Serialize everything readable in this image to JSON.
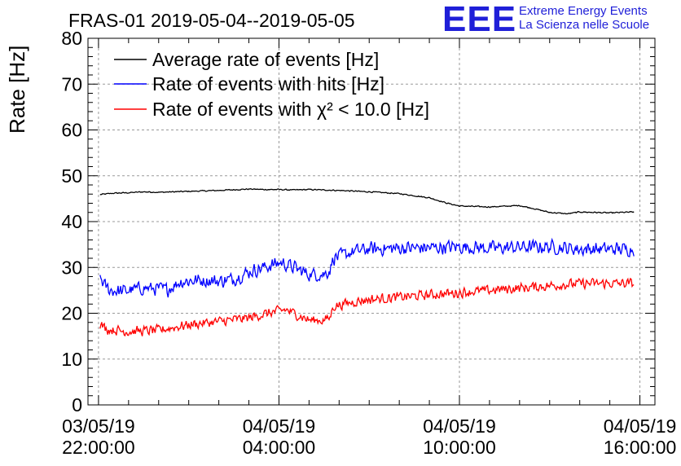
{
  "logo": {
    "letters": "EEE",
    "line1": "Extreme Energy Events",
    "line2": "La Scienza nelle Scuole"
  },
  "chart_data": {
    "type": "line",
    "title": "FRAS-01 2019-05-04--2019-05-05",
    "xlabel": "",
    "ylabel": "Rate [Hz]",
    "ylim": [
      0,
      80
    ],
    "yticks": [
      0,
      10,
      20,
      30,
      40,
      50,
      60,
      70,
      80
    ],
    "xlim_hours": [
      -0.35,
      18.5
    ],
    "xticks": [
      {
        "hours": 0,
        "date": "03/05/19",
        "time": "22:00:00"
      },
      {
        "hours": 6,
        "date": "04/05/19",
        "time": "04:00:00"
      },
      {
        "hours": 12,
        "date": "04/05/19",
        "time": "10:00:00"
      },
      {
        "hours": 18,
        "date": "04/05/19",
        "time": "16:00:00"
      }
    ],
    "x_start": "03/05/19 22:00:00",
    "x_unit": "hours since start",
    "grid": true,
    "legend_position": "top-left",
    "series": [
      {
        "name": "Average rate of events [Hz]",
        "color": "#000000",
        "noise": 0.15,
        "x": [
          0.05,
          0.5,
          1.0,
          1.5,
          2.0,
          3.0,
          4.0,
          5.0,
          5.5,
          6.0,
          6.5,
          7.0,
          8.0,
          9.0,
          10.0,
          11.0,
          11.6,
          12.0,
          13.0,
          14.0,
          14.5,
          15.0,
          15.6,
          16.0,
          17.0,
          17.8
        ],
        "y": [
          45.9,
          46.2,
          46.3,
          46.5,
          46.4,
          46.6,
          46.8,
          47.1,
          47.0,
          47.0,
          46.9,
          47.0,
          46.8,
          46.5,
          46.1,
          45.2,
          44.0,
          43.4,
          43.2,
          43.5,
          42.8,
          42.0,
          41.7,
          42.1,
          41.9,
          42.1
        ]
      },
      {
        "name": "Rate of events with hits [Hz]",
        "color": "#0000ff",
        "noise": 1.8,
        "x": [
          0.05,
          0.2,
          0.4,
          0.8,
          1.5,
          2.3,
          2.7,
          3.2,
          4.0,
          4.5,
          5.0,
          5.5,
          6.0,
          6.1,
          6.5,
          7.0,
          7.5,
          7.7,
          7.8,
          8.5,
          9.0,
          10.0,
          11.0,
          12.0,
          13.0,
          14.0,
          15.0,
          16.0,
          17.0,
          17.8
        ],
        "y": [
          28.0,
          26.0,
          25.0,
          24.8,
          25.5,
          25.2,
          26.8,
          27.2,
          27.0,
          27.5,
          29.0,
          30.0,
          31.0,
          31.0,
          30.0,
          28.5,
          28.5,
          29.5,
          32.0,
          33.5,
          34.0,
          34.2,
          34.3,
          34.5,
          34.2,
          34.4,
          34.5,
          34.0,
          34.0,
          34.0
        ]
      },
      {
        "name": "Rate of events with χ² < 10.0 [Hz]",
        "color": "#ff0000",
        "noise": 1.3,
        "x": [
          0.05,
          0.3,
          1.0,
          2.0,
          3.0,
          4.0,
          5.0,
          5.5,
          6.0,
          6.2,
          6.5,
          7.0,
          7.5,
          7.7,
          7.8,
          8.5,
          9.0,
          10.0,
          11.0,
          12.0,
          13.0,
          14.0,
          15.0,
          16.0,
          17.0,
          17.8
        ],
        "y": [
          17.5,
          16.5,
          16.0,
          16.3,
          17.5,
          18.2,
          19.0,
          19.8,
          20.5,
          20.8,
          20.0,
          18.5,
          18.5,
          19.0,
          21.5,
          22.5,
          23.0,
          23.5,
          24.0,
          24.5,
          25.0,
          25.5,
          26.0,
          26.5,
          26.5,
          26.5
        ]
      }
    ]
  }
}
